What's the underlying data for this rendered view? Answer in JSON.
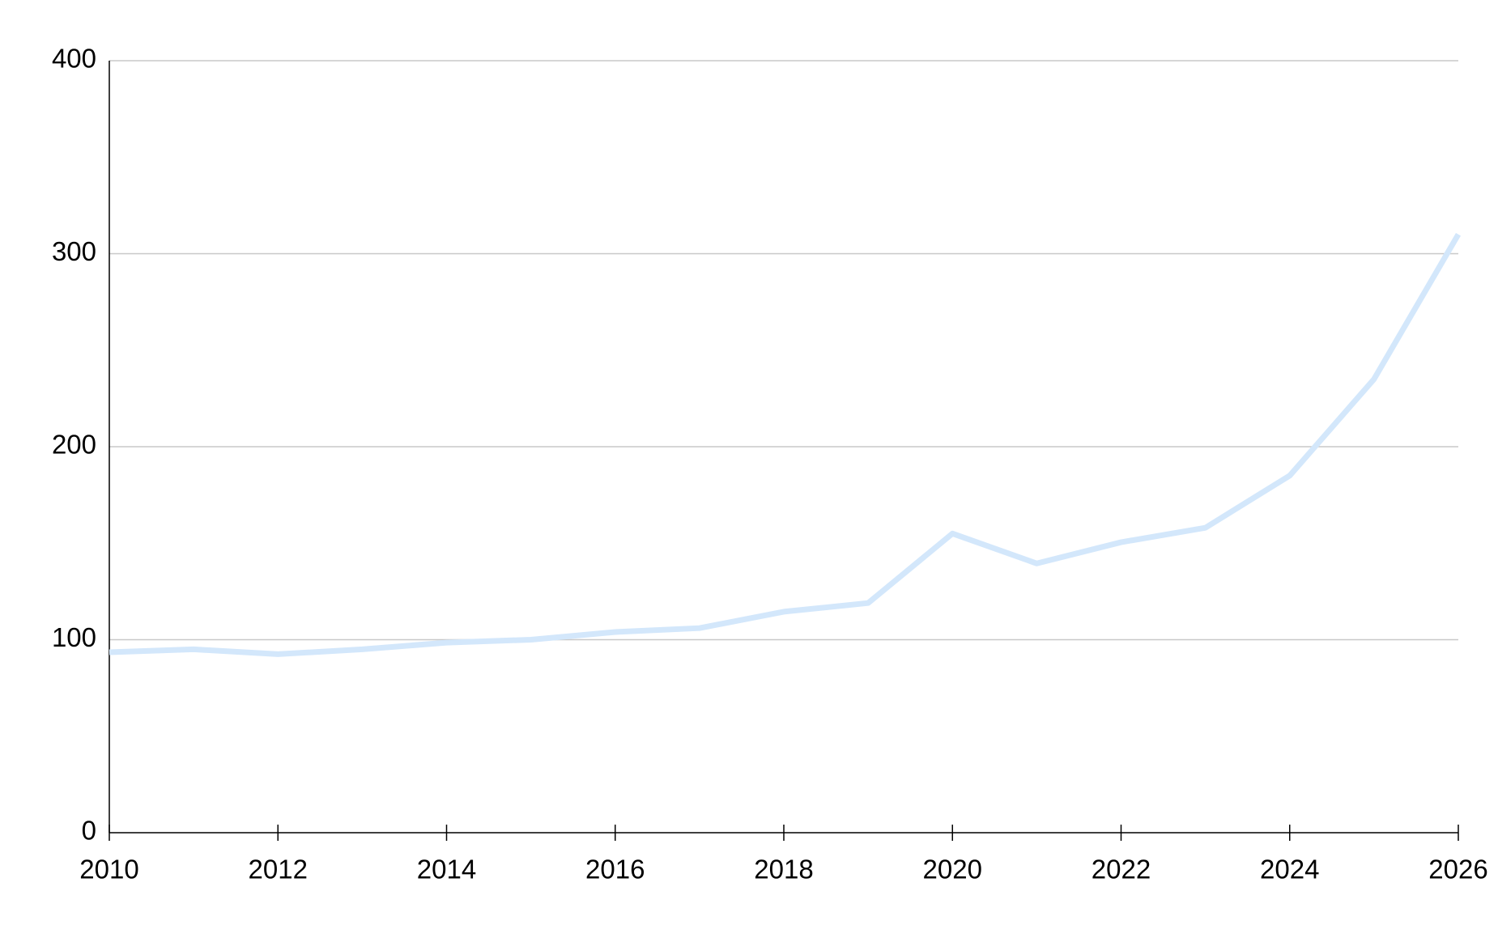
{
  "chart_data": {
    "type": "line",
    "x": [
      2010,
      2011,
      2012,
      2013,
      2014,
      2015,
      2016,
      2017,
      2018,
      2019,
      2020,
      2021,
      2022,
      2023,
      2024,
      2025,
      2026
    ],
    "series": [
      {
        "color": "#d3e7fb",
        "values": [
          93.5,
          95,
          92.5,
          95,
          98.5,
          100,
          104,
          106,
          114.5,
          119,
          155,
          139.5,
          150.5,
          158,
          185,
          235,
          310
        ]
      }
    ],
    "xlim": [
      2010,
      2026
    ],
    "xticks": [
      2010,
      2012,
      2014,
      2016,
      2018,
      2020,
      2022,
      2024,
      2026
    ],
    "ylim": [
      0,
      400
    ],
    "yticks": [
      0,
      100,
      200,
      300,
      400
    ],
    "grid": true
  }
}
